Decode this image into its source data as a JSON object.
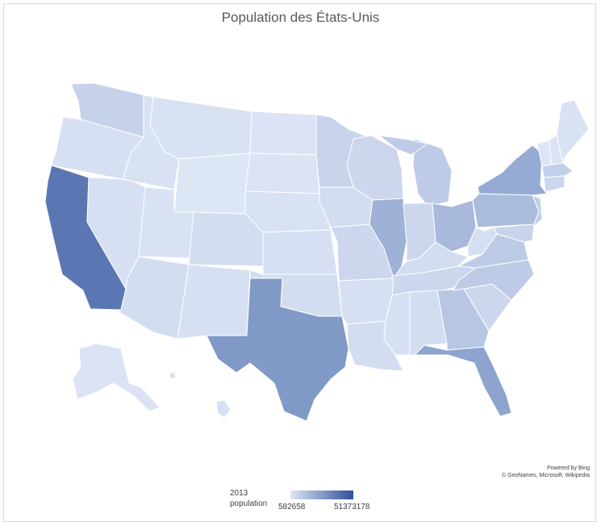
{
  "title": "Population des États-Unis",
  "credits": {
    "line1": "Powered by Bing",
    "line2": "© GeoNames, Microsoft, Wikipedia"
  },
  "legend": {
    "title_line1": "2013",
    "title_line2": "population",
    "min_label": "582658",
    "max_label": "51373178",
    "min_color": "#dde6f5",
    "max_color": "#2f4f9a"
  },
  "map_data": {
    "metric": "2013 population",
    "range": [
      582658,
      51373178
    ],
    "states": [
      {
        "name": "California",
        "relative_shade": "darkest"
      },
      {
        "name": "Texas",
        "relative_shade": "dark"
      },
      {
        "name": "Florida",
        "relative_shade": "dark"
      },
      {
        "name": "New York",
        "relative_shade": "dark"
      },
      {
        "name": "Illinois",
        "relative_shade": "medium"
      },
      {
        "name": "Pennsylvania",
        "relative_shade": "medium"
      },
      {
        "name": "Ohio",
        "relative_shade": "medium"
      },
      {
        "name": "Georgia",
        "relative_shade": "medium-light"
      },
      {
        "name": "Michigan",
        "relative_shade": "medium-light"
      },
      {
        "name": "North Carolina",
        "relative_shade": "medium-light"
      },
      {
        "name": "Washington",
        "relative_shade": "medium-light"
      },
      {
        "name": "Wyoming",
        "relative_shade": "lightest"
      }
    ]
  }
}
